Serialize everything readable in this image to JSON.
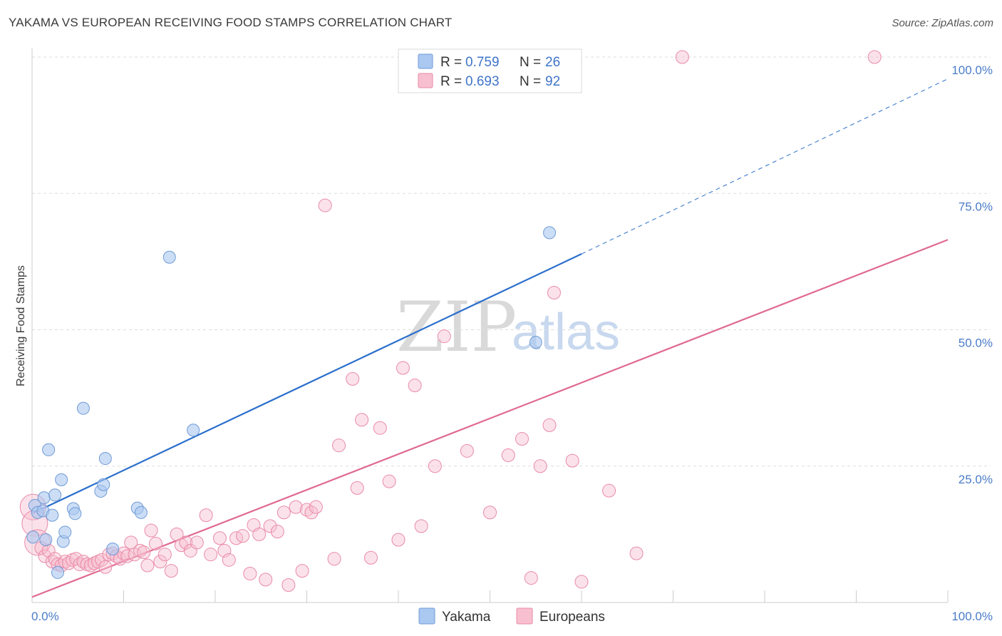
{
  "title": "YAKAMA VS EUROPEAN RECEIVING FOOD STAMPS CORRELATION CHART",
  "source": "Source: ZipAtlas.com",
  "watermark": {
    "zip": "ZIP",
    "atlas": "atlas"
  },
  "colors": {
    "yakama_fill": "#aac8f0",
    "yakama_stroke": "#6f9ad6",
    "yakama_line": "#2b6fcc",
    "europeans_fill": "#f7bfd0",
    "europeans_stroke": "#e98aa8",
    "europeans_line": "#e06990",
    "tick_label": "#4a7cc9",
    "grid": "#dddddd"
  },
  "legend": {
    "yakama": {
      "r_label": "R = ",
      "r_value": "0.759",
      "n_label": "N = ",
      "n_value": "26"
    },
    "europeans": {
      "r_label": "R = ",
      "r_value": "0.693",
      "n_label": "N = ",
      "n_value": "92"
    }
  },
  "chart_data": {
    "type": "scatter",
    "title": "YAKAMA VS EUROPEAN RECEIVING FOOD STAMPS CORRELATION CHART",
    "xlabel": "",
    "ylabel": "Receiving Food Stamps",
    "xlim": [
      0,
      100
    ],
    "ylim": [
      0,
      100
    ],
    "x_ticks": [
      0,
      10,
      20,
      30,
      40,
      50,
      60,
      70,
      80,
      90,
      100
    ],
    "x_tick_labels": [
      {
        "value": 0,
        "label": "0.0%"
      },
      {
        "value": 100,
        "label": "100.0%"
      }
    ],
    "y_ticks": [
      25,
      50,
      75,
      100
    ],
    "y_tick_labels": [
      {
        "value": 25,
        "label": "25.0%"
      },
      {
        "value": 50,
        "label": "50.0%"
      },
      {
        "value": 75,
        "label": "75.0%"
      },
      {
        "value": 100,
        "label": "100.0%"
      }
    ],
    "grid": true,
    "legend_position": "top-center",
    "series": [
      {
        "name": "Yakama",
        "r": 0.759,
        "n": 26,
        "trend": {
          "x0": 0,
          "y0": 16.3,
          "x1": 60,
          "y1": 63.9,
          "dashed_to_x": 100,
          "dashed_to_y": 96
        },
        "points": [
          [
            0.3,
            17.8
          ],
          [
            0.6,
            16.5
          ],
          [
            1.2,
            16.8
          ],
          [
            1.3,
            19.2
          ],
          [
            1.5,
            11.5
          ],
          [
            1.8,
            28.0
          ],
          [
            2.2,
            16.0
          ],
          [
            2.5,
            19.7
          ],
          [
            2.8,
            5.5
          ],
          [
            3.2,
            22.5
          ],
          [
            3.4,
            11.2
          ],
          [
            3.6,
            12.9
          ],
          [
            4.5,
            17.2
          ],
          [
            4.7,
            16.3
          ],
          [
            5.6,
            35.6
          ],
          [
            7.5,
            20.4
          ],
          [
            7.8,
            21.6
          ],
          [
            8.0,
            26.4
          ],
          [
            8.8,
            9.8
          ],
          [
            11.5,
            17.3
          ],
          [
            11.9,
            16.5
          ],
          [
            15.0,
            63.3
          ],
          [
            17.6,
            31.6
          ],
          [
            55.0,
            47.7
          ],
          [
            56.5,
            67.8
          ],
          [
            0.1,
            12.0
          ]
        ]
      },
      {
        "name": "Europeans",
        "r": 0.693,
        "n": 92,
        "trend": {
          "x0": 0,
          "y0": 1.0,
          "x1": 100,
          "y1": 66.5
        },
        "points": [
          [
            0.1,
            17.5
          ],
          [
            0.3,
            14.5
          ],
          [
            0.6,
            11.0
          ],
          [
            1.0,
            10.0
          ],
          [
            1.4,
            8.5
          ],
          [
            1.8,
            9.5
          ],
          [
            2.2,
            7.5
          ],
          [
            2.5,
            8.0
          ],
          [
            2.8,
            7.0
          ],
          [
            3.2,
            6.8
          ],
          [
            3.6,
            7.5
          ],
          [
            4.0,
            7.2
          ],
          [
            4.4,
            7.8
          ],
          [
            4.8,
            8.0
          ],
          [
            5.2,
            7.0
          ],
          [
            5.6,
            7.5
          ],
          [
            6.0,
            7.0
          ],
          [
            6.4,
            6.8
          ],
          [
            6.8,
            7.2
          ],
          [
            7.2,
            7.5
          ],
          [
            7.6,
            7.8
          ],
          [
            8.0,
            6.5
          ],
          [
            8.4,
            8.8
          ],
          [
            8.8,
            9.0
          ],
          [
            9.2,
            8.5
          ],
          [
            9.6,
            8.0
          ],
          [
            10.0,
            9.0
          ],
          [
            10.4,
            8.5
          ],
          [
            10.8,
            11.0
          ],
          [
            11.2,
            8.8
          ],
          [
            11.8,
            9.5
          ],
          [
            12.2,
            9.2
          ],
          [
            12.6,
            6.8
          ],
          [
            13.0,
            13.2
          ],
          [
            13.5,
            10.8
          ],
          [
            14.0,
            7.5
          ],
          [
            14.5,
            8.8
          ],
          [
            15.2,
            5.8
          ],
          [
            15.8,
            12.5
          ],
          [
            16.3,
            10.5
          ],
          [
            16.8,
            11.0
          ],
          [
            17.3,
            9.5
          ],
          [
            18.0,
            11.0
          ],
          [
            19.0,
            16.0
          ],
          [
            19.5,
            8.8
          ],
          [
            20.5,
            11.8
          ],
          [
            21.0,
            9.5
          ],
          [
            21.5,
            7.8
          ],
          [
            22.3,
            11.8
          ],
          [
            23.0,
            12.2
          ],
          [
            23.8,
            5.3
          ],
          [
            24.2,
            14.2
          ],
          [
            24.8,
            12.5
          ],
          [
            25.5,
            4.2
          ],
          [
            26.0,
            14.0
          ],
          [
            26.8,
            13.0
          ],
          [
            27.5,
            16.5
          ],
          [
            28.0,
            3.2
          ],
          [
            28.8,
            17.5
          ],
          [
            29.5,
            5.8
          ],
          [
            30.0,
            17.0
          ],
          [
            30.5,
            16.5
          ],
          [
            31.0,
            17.5
          ],
          [
            32.0,
            72.8
          ],
          [
            33.0,
            8.0
          ],
          [
            33.5,
            28.8
          ],
          [
            35.0,
            41.0
          ],
          [
            35.5,
            21.0
          ],
          [
            36.0,
            33.5
          ],
          [
            37.0,
            8.2
          ],
          [
            38.0,
            32.0
          ],
          [
            39.0,
            22.2
          ],
          [
            40.0,
            11.5
          ],
          [
            40.5,
            43.0
          ],
          [
            41.8,
            39.8
          ],
          [
            42.5,
            14.0
          ],
          [
            44.0,
            25.0
          ],
          [
            45.0,
            48.8
          ],
          [
            47.5,
            27.8
          ],
          [
            50.0,
            16.5
          ],
          [
            52.0,
            27.0
          ],
          [
            53.5,
            30.0
          ],
          [
            54.5,
            4.5
          ],
          [
            55.5,
            25.0
          ],
          [
            56.5,
            32.5
          ],
          [
            57.0,
            56.8
          ],
          [
            59.0,
            26.0
          ],
          [
            60.0,
            3.8
          ],
          [
            63.0,
            20.5
          ],
          [
            66.0,
            9.0
          ],
          [
            71.0,
            100.0
          ],
          [
            92.0,
            100.0
          ]
        ]
      }
    ]
  },
  "bottom_legend": [
    {
      "label": "Yakama"
    },
    {
      "label": "Europeans"
    }
  ]
}
